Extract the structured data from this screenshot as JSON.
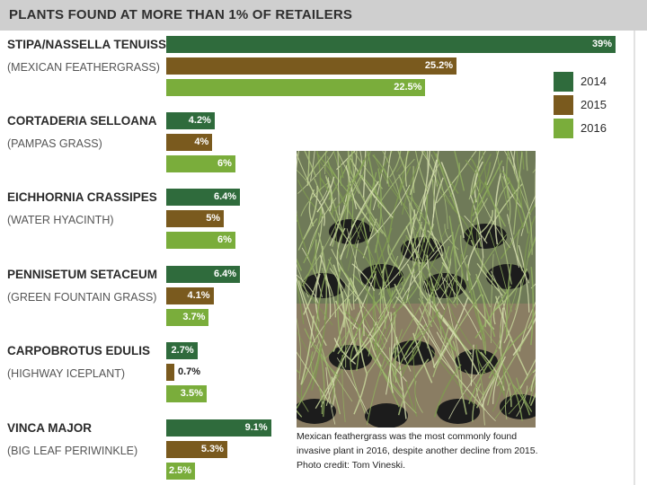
{
  "colors": {
    "y2014": "#2f6b3c",
    "y2015": "#7a5a1e",
    "y2016": "#7aad3b",
    "title_bg": "#cfcfcf"
  },
  "chart_data": {
    "type": "bar",
    "orientation": "horizontal",
    "title": "PLANTS FOUND AT MORE THAN 1% OF RETAILERS",
    "xlabel": "",
    "ylabel": "",
    "xlim": [
      0,
      39
    ],
    "grid": false,
    "legend_placement": "top-right",
    "categories": [
      {
        "name": "STIPA/NASSELLA TENUISSIMA",
        "common": "(MEXICAN FEATHERGRASS)"
      },
      {
        "name": "CORTADERIA SELLOANA",
        "common": "(PAMPAS GRASS)"
      },
      {
        "name": "EICHHORNIA CRASSIPES",
        "common": "(WATER HYACINTH)"
      },
      {
        "name": "PENNISETUM SETACEUM",
        "common": "(GREEN FOUNTAIN GRASS)"
      },
      {
        "name": "CARPOBROTUS EDULIS",
        "common": "(HIGHWAY ICEPLANT)"
      },
      {
        "name": "VINCA MAJOR",
        "common": "(BIG LEAF PERIWINKLE)"
      }
    ],
    "series": [
      {
        "name": "2014",
        "values": [
          39,
          4.2,
          6.4,
          6.4,
          2.7,
          9.1
        ],
        "labels": [
          "39%",
          "4.2%",
          "6.4%",
          "6.4%",
          "2.7%",
          "9.1%"
        ]
      },
      {
        "name": "2015",
        "values": [
          25.2,
          4,
          5,
          4.1,
          0.7,
          5.3
        ],
        "labels": [
          "25.2%",
          "4%",
          "5%",
          "4.1%",
          "0.7%",
          "5.3%"
        ]
      },
      {
        "name": "2016",
        "values": [
          22.5,
          6,
          6,
          3.7,
          3.5,
          2.5
        ],
        "labels": [
          "22.5%",
          "6%",
          "6%",
          "3.7%",
          "3.5%",
          "2.5%"
        ]
      }
    ]
  },
  "photo": {
    "caption": "Mexican feathergrass was the most commonly found invasive plant in 2016, despite another decline from 2015. Photo credit: Tom Vineski."
  }
}
